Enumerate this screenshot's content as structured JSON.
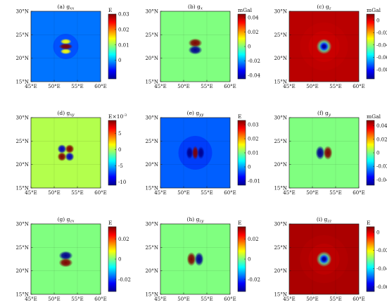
{
  "colors": {
    "jet": [
      "#00008f",
      "#0000ff",
      "#0080ff",
      "#00ffff",
      "#80ff80",
      "#ffff00",
      "#ff8000",
      "#ff0000",
      "#800000"
    ]
  },
  "chart_data": [
    {
      "type": "heatmap",
      "title": "(a) g_xx",
      "title_base": "(a) g",
      "title_sub": "xx",
      "unit": "E",
      "unit_sup": "",
      "x_ticks": [
        "45°E",
        "50°E",
        "55°E",
        "60°E"
      ],
      "y_ticks": [
        "15°N",
        "20°N",
        "25°N",
        "30°N"
      ],
      "xlim": [
        45,
        60
      ],
      "ylim": [
        15,
        30
      ],
      "colorbar_range": [
        -0.012,
        0.03
      ],
      "colorbar_ticks": [
        0,
        0.01,
        0.02,
        0.03
      ],
      "colorbar_labels": [
        "0",
        "0.01",
        "0.02",
        "0.03"
      ],
      "background_value": -0.002,
      "anomaly_center": [
        52.5,
        22.5
      ],
      "pattern": "dipole_y",
      "pattern_value": 0.03,
      "pattern_background": -0.002
    },
    {
      "type": "heatmap",
      "title": "(b) g_x",
      "title_base": "(b) g",
      "title_sub": "x",
      "unit": "mGal",
      "unit_sup": "",
      "x_ticks": [
        "45°E",
        "50°E",
        "55°E",
        "60°E"
      ],
      "y_ticks": [
        "15°N",
        "20°N",
        "25°N",
        "30°N"
      ],
      "xlim": [
        45,
        60
      ],
      "ylim": [
        15,
        30
      ],
      "colorbar_range": [
        -0.045,
        0.045
      ],
      "colorbar_ticks": [
        -0.04,
        -0.02,
        0,
        0.02,
        0.04
      ],
      "colorbar_labels": [
        "-0.04",
        "-0.02",
        "0",
        "0.02",
        "0.04"
      ],
      "background_value": 0,
      "anomaly_center": [
        52.5,
        22.5
      ],
      "pattern": "dipole_y_signed",
      "pattern_value": 0.045,
      "pattern_background": 0
    },
    {
      "type": "heatmap",
      "title": "(c) g_z",
      "title_base": "(c) g",
      "title_sub": "z",
      "unit": "mGal",
      "unit_sup": "",
      "x_ticks": [
        "45°E",
        "50°E",
        "55°E",
        "60°E"
      ],
      "y_ticks": [
        "15°N",
        "20°N",
        "25°N",
        "30°N"
      ],
      "xlim": [
        45,
        60
      ],
      "ylim": [
        15,
        30
      ],
      "colorbar_range": [
        -0.095,
        0.01
      ],
      "colorbar_ticks": [
        -0.08,
        -0.06,
        -0.04,
        -0.02,
        0
      ],
      "colorbar_labels": [
        "-0.08",
        "-0.06",
        "-0.04",
        "-0.02",
        "0"
      ],
      "background_value": 0.004,
      "anomaly_center": [
        52.5,
        22.5
      ],
      "pattern": "mono_neg",
      "pattern_value": -0.095,
      "pattern_background": 0.004
    },
    {
      "type": "heatmap",
      "title": "(d) g_xy",
      "title_base": "(d) g",
      "title_sub": "xy",
      "unit": "E×10",
      "unit_sup": "-3",
      "x_ticks": [
        "45°E",
        "50°E",
        "55°E",
        "60°E"
      ],
      "y_ticks": [
        "15°N",
        "20°N",
        "25°N",
        "30°N"
      ],
      "xlim": [
        45,
        60
      ],
      "ylim": [
        15,
        30
      ],
      "colorbar_range": [
        -11,
        9
      ],
      "colorbar_ticks": [
        -10,
        -5,
        0,
        5
      ],
      "colorbar_labels": [
        "-10",
        "-5",
        "0",
        "5"
      ],
      "background_value": 0,
      "anomaly_center": [
        52.5,
        22.5
      ],
      "pattern": "quad",
      "pattern_value": 10,
      "pattern_background": 0
    },
    {
      "type": "heatmap",
      "title": "(e) g_yy",
      "title_base": "(e) g",
      "title_sub": "yy",
      "unit": "E",
      "unit_sup": "",
      "x_ticks": [
        "45°E",
        "50°E",
        "55°E",
        "60°E"
      ],
      "y_ticks": [
        "15°N",
        "20°N",
        "25°N",
        "30°N"
      ],
      "xlim": [
        45,
        60
      ],
      "ylim": [
        15,
        30
      ],
      "colorbar_range": [
        -0.013,
        0.033
      ],
      "colorbar_ticks": [
        -0.01,
        0,
        0.01,
        0.02,
        0.03
      ],
      "colorbar_labels": [
        "-0.01",
        "0",
        "0.01",
        "0.02",
        "0.03"
      ],
      "background_value": -0.003,
      "anomaly_center": [
        52.5,
        22.5
      ],
      "pattern": "dipole_x",
      "pattern_value": 0.033,
      "pattern_background": -0.003
    },
    {
      "type": "heatmap",
      "title": "(f) g_y",
      "title_base": "(f) g",
      "title_sub": "y",
      "unit": "mGal",
      "unit_sup": "",
      "x_ticks": [
        "45°E",
        "50°E",
        "55°E",
        "60°E"
      ],
      "y_ticks": [
        "15°N",
        "20°N",
        "25°N",
        "30°N"
      ],
      "xlim": [
        45,
        60
      ],
      "ylim": [
        15,
        30
      ],
      "colorbar_range": [
        -0.048,
        0.048
      ],
      "colorbar_ticks": [
        -0.04,
        -0.02,
        0,
        0.02,
        0.04
      ],
      "colorbar_labels": [
        "-0.04",
        "-0.02",
        "0",
        "0.02",
        "0.04"
      ],
      "background_value": 0,
      "anomaly_center": [
        52.5,
        22.5
      ],
      "pattern": "dipole_x_signed",
      "pattern_value": 0.048,
      "pattern_background": 0
    },
    {
      "type": "heatmap",
      "title": "(g) g_zx",
      "title_base": "(g) g",
      "title_sub": "zx",
      "unit": "E",
      "unit_sup": "",
      "x_ticks": [
        "45°E",
        "50°E",
        "55°E",
        "60°E"
      ],
      "y_ticks": [
        "15°N",
        "20°N",
        "25°N",
        "30°N"
      ],
      "xlim": [
        45,
        60
      ],
      "ylim": [
        15,
        30
      ],
      "colorbar_range": [
        -0.032,
        0.032
      ],
      "colorbar_ticks": [
        -0.02,
        0,
        0.02
      ],
      "colorbar_labels": [
        "-0.02",
        "0",
        "0.02"
      ],
      "background_value": 0,
      "anomaly_center": [
        52.5,
        22.5
      ],
      "pattern": "dipole_y_signed_neg",
      "pattern_value": 0.032,
      "pattern_background": 0
    },
    {
      "type": "heatmap",
      "title": "(h) g_zy",
      "title_base": "(h) g",
      "title_sub": "zy",
      "unit": "E",
      "unit_sup": "",
      "x_ticks": [
        "45°E",
        "50°E",
        "55°E",
        "60°E"
      ],
      "y_ticks": [
        "15°N",
        "20°N",
        "25°N",
        "30°N"
      ],
      "xlim": [
        45,
        60
      ],
      "ylim": [
        15,
        30
      ],
      "colorbar_range": [
        -0.032,
        0.032
      ],
      "colorbar_ticks": [
        -0.02,
        0,
        0.02
      ],
      "colorbar_labels": [
        "-0.02",
        "0",
        "0.02"
      ],
      "background_value": 0,
      "anomaly_center": [
        52.5,
        22.5
      ],
      "pattern": "dipole_x_signed_neg",
      "pattern_value": 0.032,
      "pattern_background": 0
    },
    {
      "type": "heatmap",
      "title": "(i) g_zz",
      "title_base": "(i) g",
      "title_sub": "zz",
      "unit": "E",
      "unit_sup": "",
      "x_ticks": [
        "45°E",
        "50°E",
        "55°E",
        "60°E"
      ],
      "y_ticks": [
        "15°N",
        "20°N",
        "25°N",
        "30°N"
      ],
      "xlim": [
        45,
        60
      ],
      "ylim": [
        15,
        30
      ],
      "colorbar_range": [
        -0.065,
        0.006
      ],
      "colorbar_ticks": [
        -0.06,
        -0.04,
        -0.02,
        0
      ],
      "colorbar_labels": [
        "-0.06",
        "-0.04",
        "-0.02",
        "0"
      ],
      "background_value": 0.003,
      "anomaly_center": [
        52.5,
        22.5
      ],
      "pattern": "mono_neg",
      "pattern_value": -0.065,
      "pattern_background": 0.003
    }
  ]
}
